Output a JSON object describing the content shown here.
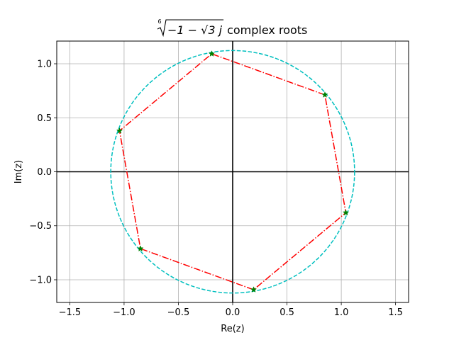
{
  "chart_data": {
    "type": "scatter",
    "title": {
      "radical_index": "6",
      "expression": "−1 − √3 j",
      "suffix": "complex roots"
    },
    "xlabel": "Re(z)",
    "ylabel": "Im(z)",
    "xlim": [
      -1.62,
      1.62
    ],
    "ylim": [
      -1.21,
      1.21
    ],
    "xticks": [
      -1.5,
      -1.0,
      -0.5,
      0.0,
      0.5,
      1.0,
      1.5
    ],
    "xtick_labels": [
      "−1.5",
      "−1.0",
      "−0.5",
      "0.0",
      "0.5",
      "1.0",
      "1.5"
    ],
    "yticks": [
      -1.0,
      -0.5,
      0.0,
      0.5,
      1.0
    ],
    "ytick_labels": [
      "−1.0",
      "−0.5",
      "0.0",
      "0.5",
      "1.0"
    ],
    "grid": true,
    "circle": {
      "radius": 1.1225,
      "color": "#00bfbf",
      "style": "dashed"
    },
    "polygon_color": "#ff0000",
    "polygon_style": "dashdot",
    "marker": "star",
    "marker_color": "#008000",
    "roots": [
      {
        "re": 0.849,
        "im": 0.712
      },
      {
        "re": -0.193,
        "im": 1.092
      },
      {
        "re": -1.042,
        "im": 0.379
      },
      {
        "re": -0.849,
        "im": -0.712
      },
      {
        "re": 0.193,
        "im": -1.092
      },
      {
        "re": 1.042,
        "im": -0.379
      }
    ]
  }
}
